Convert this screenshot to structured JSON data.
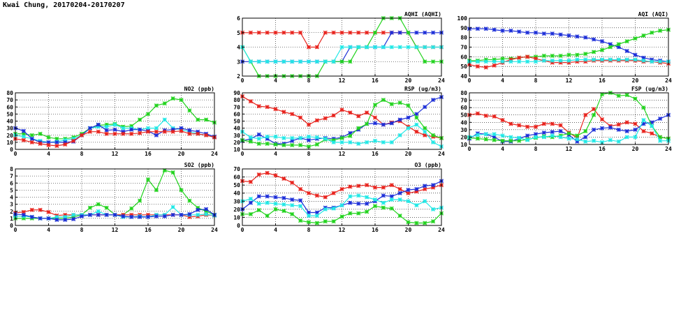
{
  "page": {
    "title": "Kwai Chung, 20170204-20170207"
  },
  "colors": {
    "red": "#e8231d",
    "blue": "#1c2ed8",
    "green": "#22d31e",
    "cyan": "#21e8e6"
  },
  "chart_data": [
    {
      "id": "aqhi",
      "type": "line",
      "title": "AQHI (AQHI)",
      "x": [
        0,
        1,
        2,
        3,
        4,
        5,
        6,
        7,
        8,
        9,
        10,
        11,
        12,
        13,
        14,
        15,
        16,
        17,
        18,
        19,
        20,
        21,
        22,
        23,
        24
      ],
      "xlim": [
        0,
        24
      ],
      "ylim": [
        2,
        6
      ],
      "xticks": [
        0,
        4,
        8,
        12,
        16,
        20,
        24
      ],
      "yticks": [
        2,
        3,
        4,
        5,
        6
      ],
      "grid": true,
      "series": [
        {
          "color": "red",
          "values": [
            5,
            5,
            5,
            5,
            5,
            5,
            5,
            5,
            4,
            4,
            5,
            5,
            5,
            5,
            5,
            5,
            5,
            5,
            5,
            5,
            5,
            4,
            4,
            4,
            4
          ]
        },
        {
          "color": "blue",
          "values": [
            3,
            3,
            3,
            3,
            3,
            3,
            3,
            3,
            3,
            3,
            3,
            3,
            3,
            4,
            4,
            4,
            4,
            4,
            5,
            5,
            5,
            5,
            5,
            5,
            5
          ]
        },
        {
          "color": "green",
          "values": [
            4,
            3,
            2,
            2,
            2,
            2,
            2,
            2,
            2,
            2,
            3,
            3,
            3,
            3,
            4,
            4,
            5,
            6,
            6,
            6,
            5,
            4,
            3,
            3,
            3
          ]
        },
        {
          "color": "cyan",
          "values": [
            4,
            3,
            3,
            3,
            3,
            3,
            3,
            3,
            3,
            3,
            3,
            3,
            4,
            4,
            4,
            4,
            4,
            4,
            4,
            4,
            4,
            4,
            4,
            4,
            4
          ]
        }
      ]
    },
    {
      "id": "aqi",
      "type": "line",
      "title": "AQI (AQI)",
      "x": [
        0,
        1,
        2,
        3,
        4,
        5,
        6,
        7,
        8,
        9,
        10,
        11,
        12,
        13,
        14,
        15,
        16,
        17,
        18,
        19,
        20,
        21,
        22,
        23,
        24
      ],
      "xlim": [
        0,
        24
      ],
      "ylim": [
        40,
        100
      ],
      "xticks": [
        0,
        4,
        8,
        12,
        16,
        20,
        24
      ],
      "yticks": [
        40,
        50,
        60,
        70,
        80,
        90,
        100
      ],
      "grid": true,
      "series": [
        {
          "color": "blue",
          "values": [
            89,
            89,
            89,
            88,
            87,
            87,
            86,
            85,
            85,
            84,
            84,
            83,
            82,
            81,
            80,
            78,
            76,
            73,
            70,
            66,
            62,
            59,
            57,
            56,
            55
          ]
        },
        {
          "color": "green",
          "values": [
            56,
            56,
            57,
            57,
            58,
            58,
            59,
            60,
            60,
            61,
            61,
            61,
            62,
            62,
            63,
            65,
            67,
            70,
            73,
            76,
            79,
            82,
            85,
            87,
            88
          ]
        },
        {
          "color": "red",
          "values": [
            52,
            50,
            49,
            51,
            54,
            57,
            59,
            60,
            58,
            56,
            54,
            54,
            54,
            55,
            55,
            56,
            56,
            56,
            56,
            56,
            56,
            55,
            55,
            54,
            53
          ]
        },
        {
          "color": "cyan",
          "values": [
            55,
            55,
            55,
            55,
            55,
            55,
            55,
            55,
            55,
            56,
            56,
            56,
            56,
            57,
            57,
            57,
            57,
            57,
            57,
            57,
            57,
            56,
            55,
            55,
            55
          ]
        }
      ]
    },
    {
      "id": "no2",
      "type": "line",
      "title": "NO2 (ppb)",
      "x": [
        0,
        1,
        2,
        3,
        4,
        5,
        6,
        7,
        8,
        9,
        10,
        11,
        12,
        13,
        14,
        15,
        16,
        17,
        18,
        19,
        20,
        21,
        22,
        23,
        24
      ],
      "xlim": [
        0,
        24
      ],
      "ylim": [
        0,
        80
      ],
      "xticks": [
        0,
        4,
        8,
        12,
        16,
        20,
        24
      ],
      "yticks": [
        0,
        10,
        20,
        30,
        40,
        50,
        60,
        70,
        80
      ],
      "grid": true,
      "series": [
        {
          "color": "green",
          "values": [
            22,
            22,
            20,
            22,
            17,
            15,
            15,
            17,
            22,
            30,
            34,
            35,
            36,
            32,
            33,
            42,
            50,
            62,
            65,
            72,
            70,
            55,
            42,
            42,
            38
          ]
        },
        {
          "color": "cyan",
          "values": [
            20,
            18,
            15,
            12,
            10,
            11,
            13,
            15,
            20,
            30,
            32,
            32,
            35,
            30,
            30,
            28,
            30,
            30,
            42,
            30,
            28,
            25,
            22,
            20,
            18
          ]
        },
        {
          "color": "blue",
          "values": [
            30,
            26,
            15,
            10,
            10,
            10,
            10,
            11,
            20,
            30,
            35,
            27,
            28,
            25,
            28,
            28,
            26,
            20,
            27,
            28,
            30,
            27,
            25,
            22,
            18
          ]
        },
        {
          "color": "red",
          "values": [
            15,
            13,
            10,
            8,
            6,
            5,
            7,
            12,
            20,
            25,
            25,
            22,
            22,
            22,
            22,
            23,
            25,
            25,
            25,
            25,
            26,
            22,
            22,
            20,
            17
          ]
        }
      ]
    },
    {
      "id": "rsp",
      "type": "line",
      "title": "RSP (ug/m3)",
      "x": [
        0,
        1,
        2,
        3,
        4,
        5,
        6,
        7,
        8,
        9,
        10,
        11,
        12,
        13,
        14,
        15,
        16,
        17,
        18,
        19,
        20,
        21,
        22,
        23,
        24
      ],
      "xlim": [
        0,
        24
      ],
      "ylim": [
        10,
        90
      ],
      "xticks": [
        0,
        4,
        8,
        12,
        16,
        20,
        24
      ],
      "yticks": [
        10,
        20,
        30,
        40,
        50,
        60,
        70,
        80,
        90
      ],
      "grid": true,
      "series": [
        {
          "color": "red",
          "values": [
            85,
            78,
            71,
            70,
            67,
            63,
            60,
            55,
            45,
            51,
            54,
            58,
            66,
            62,
            57,
            62,
            55,
            45,
            48,
            50,
            42,
            35,
            30,
            28,
            26
          ]
        },
        {
          "color": "blue",
          "values": [
            22,
            25,
            31,
            25,
            18,
            18,
            22,
            26,
            23,
            25,
            26,
            25,
            27,
            33,
            38,
            46,
            47,
            45,
            47,
            52,
            55,
            60,
            70,
            80,
            84
          ]
        },
        {
          "color": "green",
          "values": [
            23,
            21,
            18,
            18,
            17,
            16,
            16,
            16,
            14,
            17,
            24,
            23,
            26,
            29,
            40,
            46,
            73,
            80,
            74,
            76,
            72,
            55,
            40,
            30,
            26
          ]
        },
        {
          "color": "cyan",
          "values": [
            35,
            27,
            25,
            28,
            28,
            26,
            26,
            26,
            28,
            27,
            25,
            20,
            20,
            20,
            18,
            20,
            22,
            20,
            20,
            30,
            40,
            45,
            35,
            20,
            14
          ]
        }
      ]
    },
    {
      "id": "fsp",
      "type": "line",
      "title": "FSP (ug/m3)",
      "x": [
        0,
        1,
        2,
        3,
        4,
        5,
        6,
        7,
        8,
        9,
        10,
        11,
        12,
        13,
        14,
        15,
        16,
        17,
        18,
        19,
        20,
        21,
        22,
        23,
        24
      ],
      "xlim": [
        0,
        24
      ],
      "ylim": [
        10,
        80
      ],
      "xticks": [
        0,
        4,
        8,
        12,
        16,
        20,
        24
      ],
      "yticks": [
        10,
        20,
        30,
        40,
        50,
        60,
        70,
        80
      ],
      "grid": true,
      "series": [
        {
          "color": "red",
          "values": [
            50,
            52,
            49,
            48,
            43,
            38,
            36,
            34,
            34,
            38,
            38,
            36,
            26,
            19,
            50,
            58,
            44,
            35,
            37,
            40,
            38,
            28,
            25,
            20,
            18
          ]
        },
        {
          "color": "blue",
          "values": [
            18,
            25,
            24,
            20,
            14,
            14,
            18,
            22,
            24,
            26,
            27,
            28,
            23,
            14,
            20,
            30,
            32,
            33,
            30,
            28,
            30,
            38,
            40,
            45,
            50
          ]
        },
        {
          "color": "green",
          "values": [
            19,
            18,
            17,
            16,
            15,
            15,
            15,
            17,
            19,
            21,
            20,
            22,
            25,
            22,
            28,
            50,
            78,
            80,
            76,
            77,
            72,
            60,
            35,
            20,
            18
          ]
        },
        {
          "color": "cyan",
          "values": [
            20,
            23,
            24,
            24,
            22,
            20,
            19,
            16,
            20,
            20,
            22,
            20,
            18,
            17,
            14,
            15,
            13,
            16,
            14,
            20,
            20,
            43,
            35,
            15,
            15
          ]
        }
      ]
    },
    {
      "id": "so2",
      "type": "line",
      "title": "SO2 (ppb)",
      "x": [
        0,
        1,
        2,
        3,
        4,
        5,
        6,
        7,
        8,
        9,
        10,
        11,
        12,
        13,
        14,
        15,
        16,
        17,
        18,
        19,
        20,
        21,
        22,
        23,
        24
      ],
      "xlim": [
        0,
        24
      ],
      "ylim": [
        0,
        8
      ],
      "xticks": [
        0,
        4,
        8,
        12,
        16,
        20,
        24
      ],
      "yticks": [
        0,
        1,
        2,
        3,
        4,
        5,
        6,
        7,
        8
      ],
      "grid": true,
      "series": [
        {
          "color": "green",
          "values": [
            1,
            1,
            1,
            1,
            1,
            1,
            1,
            1.2,
            1.5,
            2.5,
            3,
            2.5,
            1.5,
            1.5,
            2.4,
            3.5,
            6.5,
            5,
            7.8,
            7.5,
            5,
            3.5,
            2.5,
            2,
            1.5
          ]
        },
        {
          "color": "red",
          "values": [
            1.8,
            1.9,
            2.2,
            2.2,
            1.9,
            1.4,
            1.5,
            1.5,
            1.5,
            1.5,
            1.5,
            1.5,
            1.5,
            1.5,
            1.5,
            1.5,
            1.5,
            1.5,
            1.5,
            1.5,
            1.5,
            1.2,
            1.3,
            1.5,
            1.4
          ]
        },
        {
          "color": "cyan",
          "values": [
            1.3,
            1.3,
            1.2,
            1,
            1,
            1.2,
            1.2,
            1.5,
            1.5,
            1.5,
            2,
            1.5,
            1.5,
            1.2,
            1.2,
            1.3,
            1.2,
            1.5,
            1.5,
            2.6,
            1.5,
            1.5,
            1.5,
            1.6,
            1.4
          ]
        },
        {
          "color": "blue",
          "values": [
            1.6,
            1.5,
            1.2,
            1,
            1,
            0.8,
            0.8,
            0.9,
            1.3,
            1.5,
            1.5,
            1.5,
            1.5,
            1.3,
            1.2,
            1.2,
            1.2,
            1.3,
            1.3,
            1.5,
            1.5,
            1.6,
            2.2,
            2.3,
            1.5
          ]
        }
      ]
    },
    {
      "id": "o3",
      "type": "line",
      "title": "O3 (ppb)",
      "x": [
        0,
        1,
        2,
        3,
        4,
        5,
        6,
        7,
        8,
        9,
        10,
        11,
        12,
        13,
        14,
        15,
        16,
        17,
        18,
        19,
        20,
        21,
        22,
        23,
        24
      ],
      "xlim": [
        0,
        24
      ],
      "ylim": [
        0,
        70
      ],
      "xticks": [
        0,
        4,
        8,
        12,
        16,
        20,
        24
      ],
      "yticks": [
        0,
        10,
        20,
        30,
        40,
        50,
        60,
        70
      ],
      "grid": true,
      "series": [
        {
          "color": "red",
          "values": [
            55,
            54,
            63,
            65,
            62,
            58,
            53,
            45,
            40,
            37,
            35,
            40,
            45,
            48,
            49,
            50,
            47,
            47,
            50,
            45,
            40,
            42,
            45,
            47,
            50
          ]
        },
        {
          "color": "blue",
          "values": [
            20,
            28,
            36,
            36,
            35,
            34,
            32,
            31,
            16,
            16,
            22,
            22,
            25,
            28,
            27,
            27,
            30,
            37,
            36,
            40,
            44,
            45,
            49,
            50,
            55
          ]
        },
        {
          "color": "cyan",
          "values": [
            30,
            33,
            27,
            28,
            27,
            26,
            25,
            24,
            12,
            12,
            20,
            21,
            25,
            36,
            37,
            35,
            32,
            28,
            32,
            32,
            30,
            25,
            30,
            20,
            22
          ]
        },
        {
          "color": "green",
          "values": [
            14,
            14,
            19,
            12,
            20,
            18,
            14,
            6,
            4,
            3,
            5,
            5,
            11,
            15,
            15,
            17,
            24,
            22,
            21,
            12,
            4,
            3,
            3,
            5,
            15
          ]
        }
      ]
    }
  ]
}
